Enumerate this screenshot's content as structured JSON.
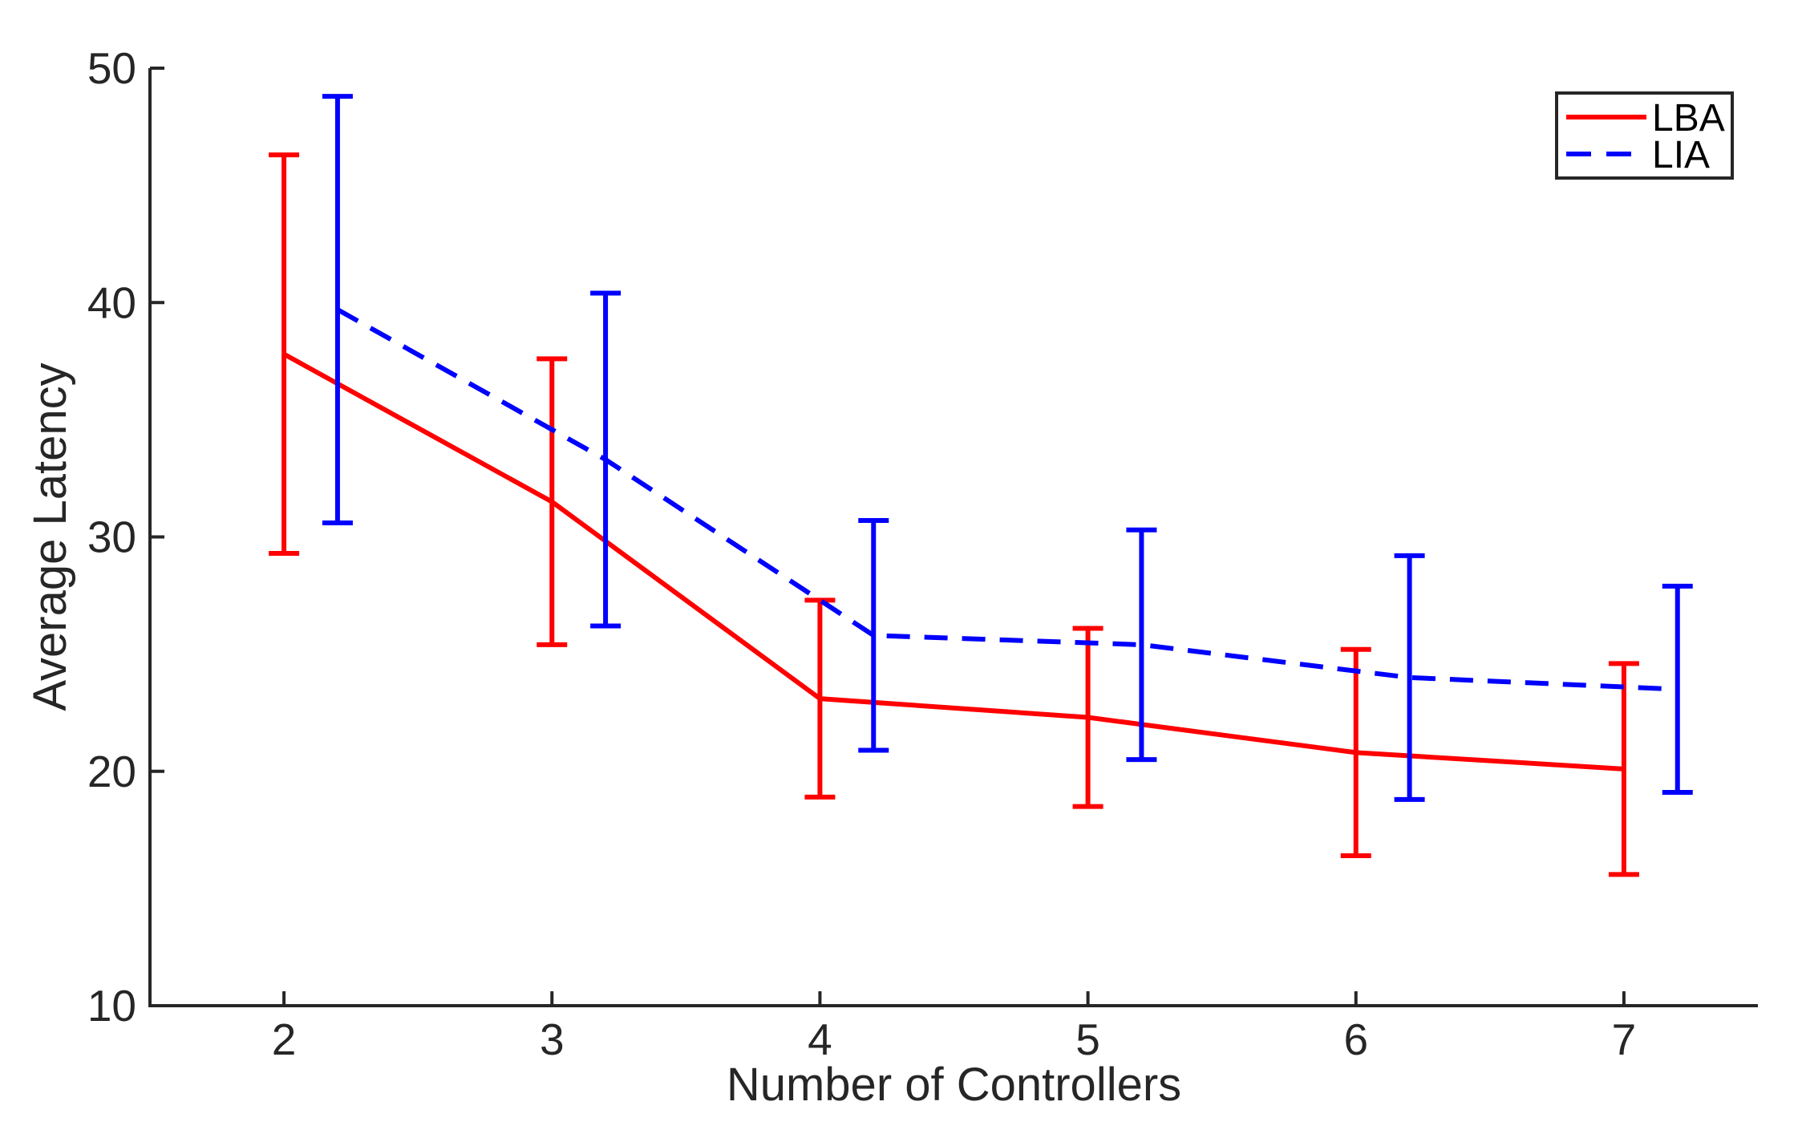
{
  "figure": {
    "background": "#ffffff",
    "axis_color": "#262626",
    "tick_label_color": "#262626",
    "legend_border_color": "#262626",
    "legend_text_color": "#000000"
  },
  "chart_data": {
    "type": "line",
    "title": "",
    "xlabel": "Number of Controllers",
    "ylabel": "Average Latency",
    "xlim": [
      1.5,
      7.5
    ],
    "ylim": [
      10,
      50
    ],
    "xticks": [
      2,
      3,
      4,
      5,
      6,
      7
    ],
    "yticks": [
      10,
      20,
      30,
      40,
      50
    ],
    "grid": false,
    "legend_position": "top-right",
    "series": [
      {
        "name": "LBA",
        "color": "#ff0000",
        "line_style": "solid",
        "error_bars": true,
        "x": [
          2,
          3,
          4,
          5,
          6,
          7
        ],
        "y": [
          37.8,
          31.5,
          23.1,
          22.3,
          20.8,
          20.1
        ],
        "yerr": [
          8.5,
          6.1,
          4.2,
          3.8,
          4.4,
          4.5
        ]
      },
      {
        "name": "LIA",
        "color": "#0000ff",
        "line_style": "dashed",
        "error_bars": true,
        "x": [
          2.2,
          3.2,
          4.2,
          5.2,
          6.2,
          7.2
        ],
        "y": [
          39.7,
          33.3,
          25.8,
          25.4,
          24.0,
          23.5
        ],
        "yerr": [
          9.1,
          7.1,
          4.9,
          4.9,
          5.2,
          4.4
        ]
      }
    ]
  },
  "legend": {
    "items": [
      {
        "label": "LBA"
      },
      {
        "label": "LIA"
      }
    ]
  }
}
